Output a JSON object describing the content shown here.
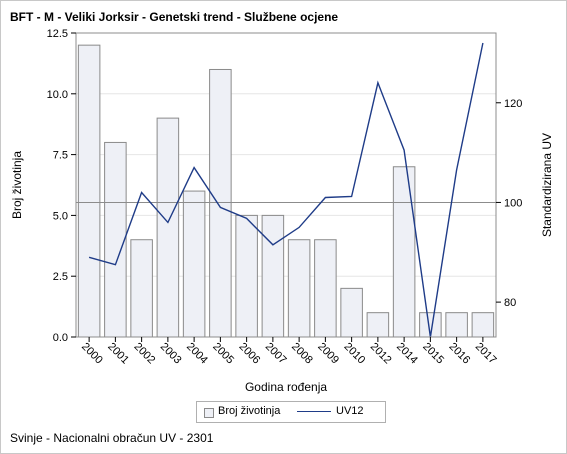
{
  "title": "BFT - M - Veliki Jorksir - Genetski trend - Službene ocjene",
  "footnote": "Svinje - Nacionalni obračun UV - 2301",
  "legend": {
    "bar_label": "Broj životinja",
    "line_label": "UV12",
    "placement": "bottom"
  },
  "colors": {
    "bar_fill": "#eef0f6",
    "bar_stroke": "#8a8a8a",
    "line": "#1f3c88",
    "reference_line": "#8c8c8c"
  },
  "chart_data": {
    "type": "bar",
    "categories": [
      "2000",
      "2001",
      "2002",
      "2003",
      "2004",
      "2005",
      "2006",
      "2007",
      "2008",
      "2009",
      "2010",
      "2012",
      "2014",
      "2015",
      "2016",
      "2017"
    ],
    "series": [
      {
        "name": "Broj životinja",
        "axis": "left",
        "type": "bar",
        "values": [
          12,
          8,
          4,
          9,
          6,
          11,
          5,
          5,
          4,
          4,
          2,
          1,
          7,
          1,
          1,
          1
        ]
      },
      {
        "name": "UV12",
        "axis": "right",
        "type": "line",
        "values": [
          89,
          87.5,
          102,
          96,
          107,
          99,
          96.8,
          91.5,
          95,
          101,
          101.2,
          124,
          110.5,
          73,
          106.5,
          132
        ]
      }
    ],
    "xlabel": "Godina rođenja",
    "ylabel": "Broj životinja",
    "y2label": "Standardizirana UV",
    "ylim": [
      0,
      12.5
    ],
    "yticks": [
      "0.0",
      "2.5",
      "5.0",
      "7.5",
      "10.0",
      "12.5"
    ],
    "ytick_values": [
      0,
      2.5,
      5,
      7.5,
      10,
      12.5
    ],
    "y2lim": [
      73,
      134
    ],
    "y2ticks": [
      "80",
      "100",
      "120"
    ],
    "y2tick_values": [
      80,
      100,
      120
    ],
    "reference_line_y2": 100,
    "grid": true
  }
}
